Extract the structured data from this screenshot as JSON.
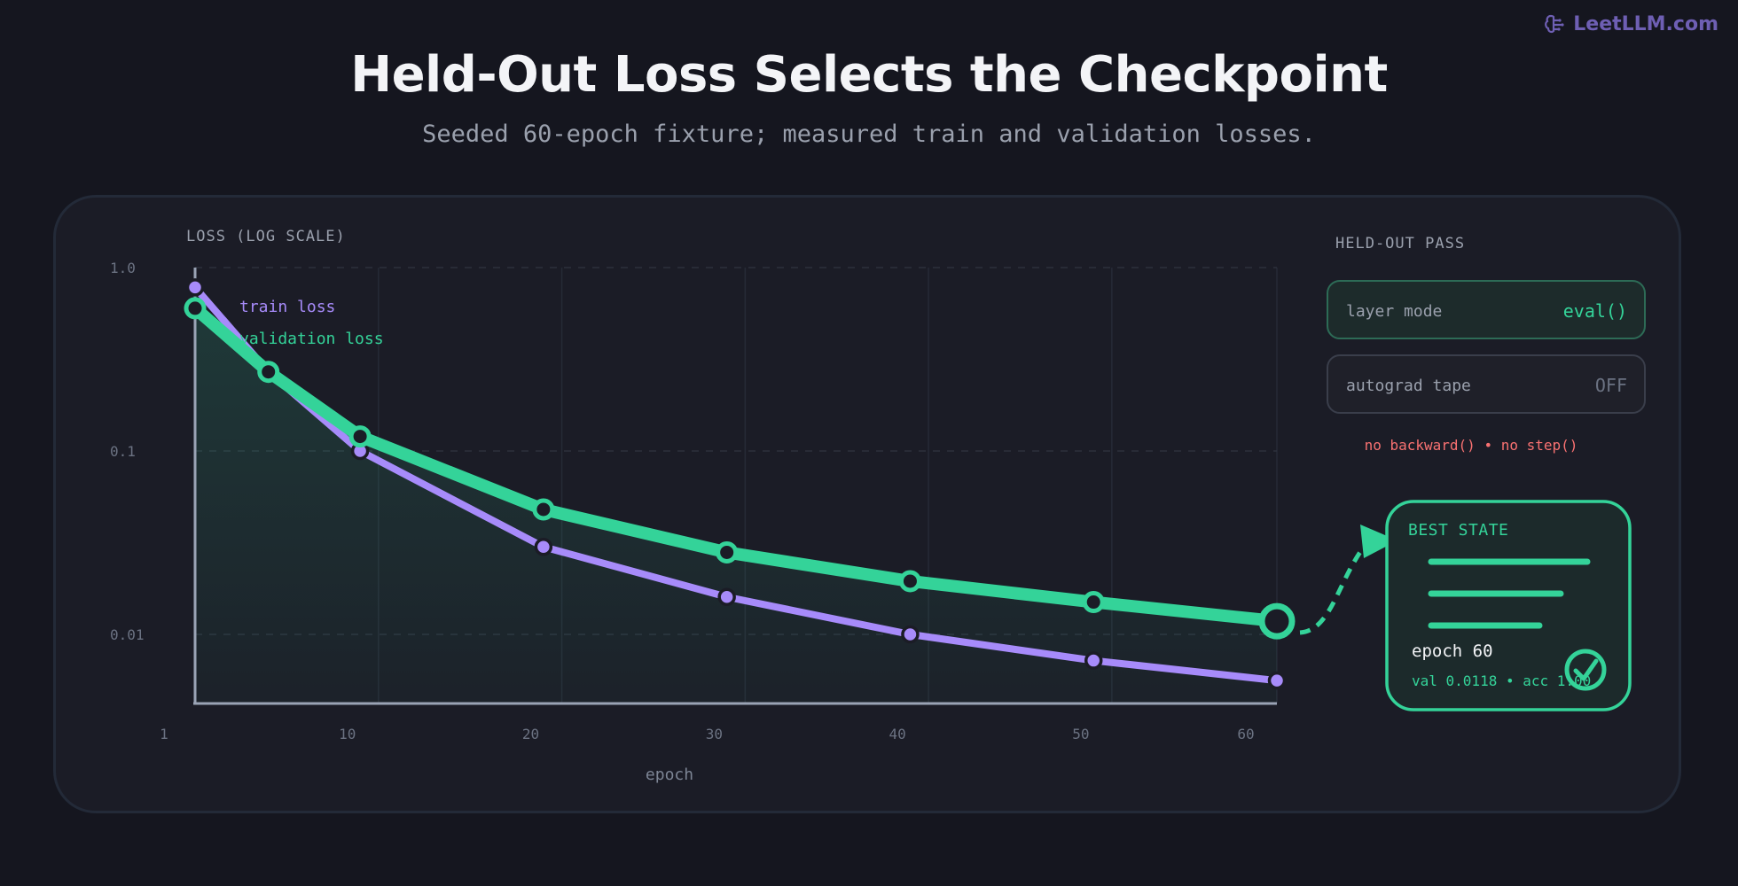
{
  "brand": {
    "name": "LeetLLM.com",
    "icon": "brain-icon",
    "color": "#6e5fb3"
  },
  "header": {
    "title": "Held-Out Loss Selects the Checkpoint",
    "subtitle": "Seeded 60-epoch fixture; measured train and validation losses."
  },
  "chart_data": {
    "type": "line",
    "ylabel": "LOSS (LOG SCALE)",
    "xlabel": "epoch",
    "y_scale": "log",
    "ylim": [
      0.0042,
      1.0
    ],
    "xlim": [
      1,
      60
    ],
    "x_ticks": [
      {
        "value": 1,
        "label": "1"
      },
      {
        "value": 11,
        "label": "10"
      },
      {
        "value": 21,
        "label": "20"
      },
      {
        "value": 31,
        "label": "30"
      },
      {
        "value": 41,
        "label": "40"
      },
      {
        "value": 51,
        "label": "50"
      },
      {
        "value": 60,
        "label": "60"
      }
    ],
    "y_ticks": [
      {
        "value": 1.0,
        "label": "1.0"
      },
      {
        "value": 0.1,
        "label": "0.1"
      },
      {
        "value": 0.01,
        "label": "0.01"
      }
    ],
    "grid": true,
    "legend_position": "top-left",
    "x": [
      1,
      5,
      10,
      20,
      30,
      40,
      50,
      60
    ],
    "series": [
      {
        "name": "train loss",
        "color": "#a78bfa",
        "values": [
          0.78,
          0.27,
          0.1,
          0.03,
          0.016,
          0.01,
          0.0072,
          0.0056
        ]
      },
      {
        "name": "validation loss",
        "color": "#34d399",
        "values": [
          0.6,
          0.27,
          0.12,
          0.048,
          0.028,
          0.0195,
          0.015,
          0.0118
        ]
      }
    ],
    "highlight": {
      "series": "validation loss",
      "x": 60
    }
  },
  "held_out": {
    "title": "HELD-OUT PASS",
    "rows": [
      {
        "label": "layer mode",
        "value": "eval()",
        "active": true
      },
      {
        "label": "autograd tape",
        "value": "OFF",
        "active": false
      }
    ],
    "note": "no backward() • no step()"
  },
  "best_state": {
    "title": "BEST STATE",
    "epoch_label": "epoch 60",
    "metrics": "val 0.0118 • acc 1.00",
    "icon": "check-circle-icon"
  },
  "colors": {
    "background": "#15161f",
    "panel": "#1b1c26",
    "accent_green": "#34d399",
    "accent_purple": "#a78bfa",
    "warning": "#f87171"
  }
}
